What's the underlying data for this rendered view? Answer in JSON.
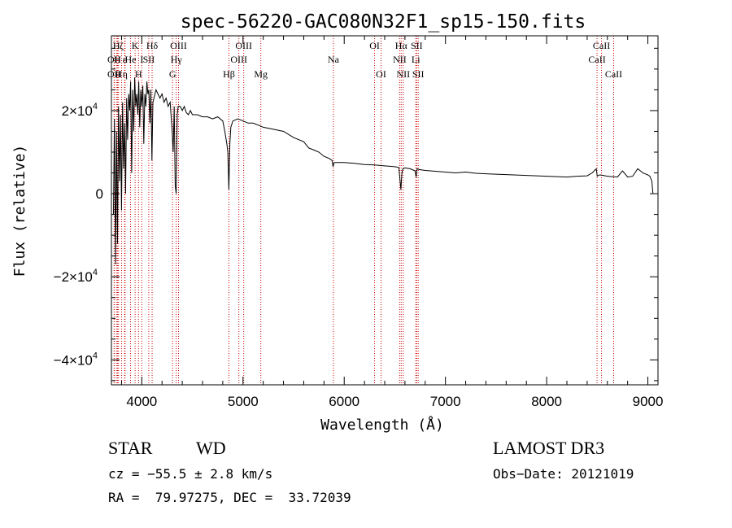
{
  "chart_data": {
    "type": "line",
    "title": "spec-56220-GAC080N32F1_sp15-150.fits",
    "xlabel": "Wavelength (Å)",
    "ylabel": "Flux (relative)",
    "xlim": [
      3700,
      9100
    ],
    "ylim": [
      -46000,
      38000
    ],
    "x_ticks": [
      4000,
      5000,
      6000,
      7000,
      8000,
      9000
    ],
    "x_tick_labels": [
      "4000",
      "5000",
      "6000",
      "7000",
      "8000",
      "9000"
    ],
    "y_ticks": [
      {
        "value": -40000,
        "mantissa": "−4×10",
        "exp": "4"
      },
      {
        "value": -20000,
        "mantissa": "−2×10",
        "exp": "4"
      },
      {
        "value": 0,
        "mantissa": "0",
        "exp": ""
      },
      {
        "value": 20000,
        "mantissa": "2×10",
        "exp": "4"
      }
    ],
    "series": [
      {
        "name": "flux",
        "x": [
          3720,
          3730,
          3740,
          3750,
          3760,
          3770,
          3780,
          3790,
          3800,
          3810,
          3820,
          3830,
          3840,
          3850,
          3860,
          3870,
          3880,
          3890,
          3900,
          3910,
          3920,
          3930,
          3940,
          3950,
          3960,
          3970,
          3980,
          3990,
          4000,
          4010,
          4020,
          4030,
          4040,
          4050,
          4060,
          4070,
          4080,
          4090,
          4100,
          4110,
          4120,
          4140,
          4160,
          4180,
          4200,
          4220,
          4240,
          4260,
          4280,
          4300,
          4310,
          4320,
          4330,
          4340,
          4350,
          4360,
          4380,
          4400,
          4420,
          4440,
          4460,
          4480,
          4500,
          4550,
          4600,
          4650,
          4700,
          4750,
          4800,
          4820,
          4840,
          4850,
          4860,
          4870,
          4880,
          4900,
          4950,
          5000,
          5050,
          5100,
          5150,
          5200,
          5300,
          5400,
          5500,
          5600,
          5650,
          5700,
          5750,
          5800,
          5850,
          5880,
          5890,
          5900,
          5950,
          6000,
          6100,
          6200,
          6300,
          6400,
          6500,
          6540,
          6560,
          6570,
          6580,
          6600,
          6650,
          6700,
          6710,
          6720,
          6740,
          6800,
          6900,
          7000,
          7100,
          7200,
          7300,
          7400,
          7500,
          7600,
          7700,
          7800,
          7900,
          8000,
          8100,
          8200,
          8300,
          8400,
          8450,
          8490,
          8500,
          8520,
          8540,
          8560,
          8580,
          8600,
          8650,
          8700,
          8750,
          8800,
          8850,
          8900,
          8950,
          9000,
          9020,
          9040,
          9050
        ],
        "y": [
          -5000,
          18000,
          -17000,
          15000,
          -12000,
          21000,
          3000,
          19000,
          -4000,
          22000,
          6000,
          17000,
          0,
          23000,
          13000,
          24000,
          20000,
          27000,
          5000,
          25000,
          15000,
          28000,
          21000,
          24000,
          19000,
          27000,
          16000,
          25000,
          21000,
          26000,
          12000,
          24000,
          21000,
          27000,
          24000,
          25000,
          17000,
          25000,
          8000,
          22000,
          23000,
          25000,
          24000,
          23000,
          24000,
          22000,
          23000,
          21000,
          22000,
          15000,
          10000,
          21000,
          2000,
          0,
          19000,
          21000,
          21000,
          20000,
          21000,
          19500,
          19000,
          20000,
          19000,
          19000,
          18500,
          18500,
          18000,
          18500,
          17500,
          15000,
          12000,
          10000,
          1000,
          12000,
          16000,
          17500,
          18000,
          17500,
          17000,
          17000,
          16500,
          16000,
          15500,
          15000,
          13500,
          12500,
          11000,
          10500,
          10000,
          9000,
          8500,
          8000,
          6500,
          7500,
          7500,
          7500,
          7300,
          7000,
          6900,
          6700,
          6500,
          6300,
          1000,
          5000,
          6000,
          6200,
          6000,
          5500,
          4000,
          6000,
          5800,
          5600,
          5400,
          5200,
          5000,
          5200,
          4900,
          4800,
          4700,
          4600,
          4500,
          4400,
          4300,
          4200,
          4100,
          4000,
          4200,
          4300,
          5000,
          6000,
          4200,
          4500,
          4500,
          4400,
          4300,
          4200,
          4100,
          4000,
          5500,
          4000,
          4200,
          6000,
          5000,
          4500,
          4200,
          3000,
          0
        ],
        "color": "#000000"
      }
    ],
    "lines": [
      {
        "x": 3727,
        "label": "OII",
        "row": 1
      },
      {
        "x": 3727,
        "label": "OII",
        "row": 2
      },
      {
        "x": 3750,
        "label": "H",
        "row": 0
      },
      {
        "x": 3760,
        "label": "H",
        "row": 1
      },
      {
        "x": 3770,
        "label": "H",
        "row": 2
      },
      {
        "x": 3800,
        "label": "ζ",
        "row": 0
      },
      {
        "x": 3830,
        "label": "ε",
        "row": 1
      },
      {
        "x": 3835,
        "label": "η",
        "row": 2
      },
      {
        "x": 3889,
        "label": "He",
        "row": 1
      },
      {
        "x": 3934,
        "label": "K",
        "row": 0
      },
      {
        "x": 3968,
        "label": "H",
        "row": 2
      },
      {
        "x": 4000,
        "label": "I",
        "row": 1
      },
      {
        "x": 4069,
        "label": "SII",
        "row": 1
      },
      {
        "x": 4102,
        "label": "Hδ",
        "row": 0
      },
      {
        "x": 4304,
        "label": "G",
        "row": 2
      },
      {
        "x": 4340,
        "label": "Hγ",
        "row": 1
      },
      {
        "x": 4363,
        "label": "OIII",
        "row": 0
      },
      {
        "x": 4861,
        "label": "Hβ",
        "row": 2
      },
      {
        "x": 4959,
        "label": "OIII",
        "row": 1
      },
      {
        "x": 5007,
        "label": "OIII",
        "row": 0
      },
      {
        "x": 5176,
        "label": "Mg",
        "row": 2
      },
      {
        "x": 5893,
        "label": "Na",
        "row": 1
      },
      {
        "x": 6300,
        "label": "OI",
        "row": 0
      },
      {
        "x": 6364,
        "label": "OI",
        "row": 2
      },
      {
        "x": 6548,
        "label": "NII",
        "row": 1
      },
      {
        "x": 6563,
        "label": "Hα",
        "row": 0
      },
      {
        "x": 6583,
        "label": "NII",
        "row": 2
      },
      {
        "x": 6707,
        "label": "Li",
        "row": 1
      },
      {
        "x": 6716,
        "label": "SII",
        "row": 0
      },
      {
        "x": 6731,
        "label": "SII",
        "row": 2
      },
      {
        "x": 8498,
        "label": "CaII",
        "row": 1
      },
      {
        "x": 8542,
        "label": "CaII",
        "row": 0
      },
      {
        "x": 8662,
        "label": "CaII",
        "row": 2
      }
    ]
  },
  "info": {
    "object_class": "STAR",
    "subclass": "WD",
    "survey": "LAMOST DR3",
    "redshift": "cz = −55.5 ± 2.8 km/s",
    "obs_date": "Obs−Date: 20121019",
    "coords": "RA =  79.97275, DEC =  33.72039"
  }
}
